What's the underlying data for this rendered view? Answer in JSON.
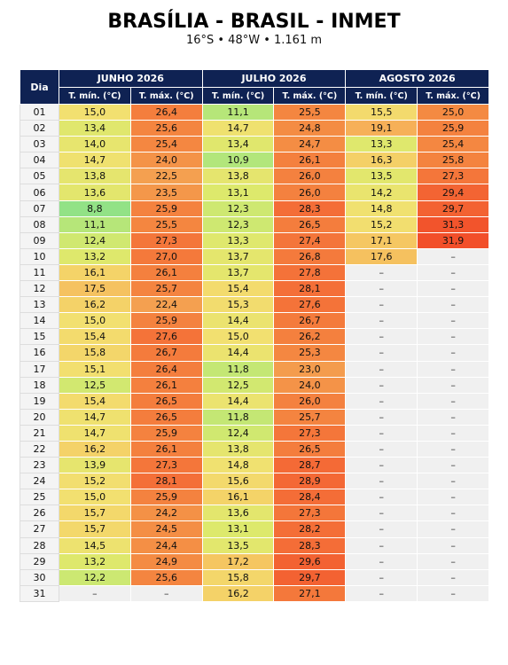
{
  "header": {
    "title": "BRASÍLIA - BRASIL - INMET",
    "subtitle": "16°S • 48°W • 1.161 m"
  },
  "table": {
    "corner": "Dia",
    "months": [
      "JUNHO 2026",
      "JULHO 2026",
      "AGOSTO 2026"
    ],
    "subheaders": [
      "T. mín. (°C)",
      "T. máx. (°C)",
      "T. mín. (°C)",
      "T. máx. (°C)",
      "T. mín. (°C)",
      "T. máx. (°C)"
    ],
    "rows": [
      [
        "01",
        "15,0",
        "26,4",
        "11,1",
        "25,5",
        "15,5",
        "25,0"
      ],
      [
        "02",
        "13,4",
        "25,6",
        "14,7",
        "24,8",
        "19,1",
        "25,9"
      ],
      [
        "03",
        "14,0",
        "25,4",
        "13,4",
        "24,7",
        "13,3",
        "25,4"
      ],
      [
        "04",
        "14,7",
        "24,0",
        "10,9",
        "26,1",
        "16,3",
        "25,8"
      ],
      [
        "05",
        "13,8",
        "22,5",
        "13,8",
        "26,0",
        "13,5",
        "27,3"
      ],
      [
        "06",
        "13,6",
        "23,5",
        "13,1",
        "26,0",
        "14,2",
        "29,4"
      ],
      [
        "07",
        "8,8",
        "25,9",
        "12,3",
        "28,3",
        "14,8",
        "29,7"
      ],
      [
        "08",
        "11,1",
        "25,5",
        "12,3",
        "26,5",
        "15,2",
        "31,3"
      ],
      [
        "09",
        "12,4",
        "27,3",
        "13,3",
        "27,4",
        "17,1",
        "31,9"
      ],
      [
        "10",
        "13,2",
        "27,0",
        "13,7",
        "26,8",
        "17,6",
        "–"
      ],
      [
        "11",
        "16,1",
        "26,1",
        "13,7",
        "27,8",
        "–",
        "–"
      ],
      [
        "12",
        "17,5",
        "25,7",
        "15,4",
        "28,1",
        "–",
        "–"
      ],
      [
        "13",
        "16,2",
        "22,4",
        "15,3",
        "27,6",
        "–",
        "–"
      ],
      [
        "14",
        "15,0",
        "25,9",
        "14,4",
        "26,7",
        "–",
        "–"
      ],
      [
        "15",
        "15,4",
        "27,6",
        "15,0",
        "26,2",
        "–",
        "–"
      ],
      [
        "16",
        "15,8",
        "26,7",
        "14,4",
        "25,3",
        "–",
        "–"
      ],
      [
        "17",
        "15,1",
        "26,4",
        "11,8",
        "23,0",
        "–",
        "–"
      ],
      [
        "18",
        "12,5",
        "26,1",
        "12,5",
        "24,0",
        "–",
        "–"
      ],
      [
        "19",
        "15,4",
        "26,5",
        "14,4",
        "26,0",
        "–",
        "–"
      ],
      [
        "20",
        "14,7",
        "26,5",
        "11,8",
        "25,7",
        "–",
        "–"
      ],
      [
        "21",
        "14,7",
        "25,9",
        "12,4",
        "27,3",
        "–",
        "–"
      ],
      [
        "22",
        "16,2",
        "26,1",
        "13,8",
        "26,5",
        "–",
        "–"
      ],
      [
        "23",
        "13,9",
        "27,3",
        "14,8",
        "28,7",
        "–",
        "–"
      ],
      [
        "24",
        "15,2",
        "28,1",
        "15,6",
        "28,9",
        "–",
        "–"
      ],
      [
        "25",
        "15,0",
        "25,9",
        "16,1",
        "28,4",
        "–",
        "–"
      ],
      [
        "26",
        "15,7",
        "24,2",
        "13,6",
        "27,3",
        "–",
        "–"
      ],
      [
        "27",
        "15,7",
        "24,5",
        "13,1",
        "28,2",
        "–",
        "–"
      ],
      [
        "28",
        "14,5",
        "24,4",
        "13,5",
        "28,3",
        "–",
        "–"
      ],
      [
        "29",
        "13,2",
        "24,9",
        "17,2",
        "29,6",
        "–",
        "–"
      ],
      [
        "30",
        "12,2",
        "25,6",
        "15,8",
        "29,7",
        "–",
        "–"
      ],
      [
        "31",
        "–",
        "–",
        "16,2",
        "27,1",
        "–",
        "–"
      ]
    ]
  }
}
